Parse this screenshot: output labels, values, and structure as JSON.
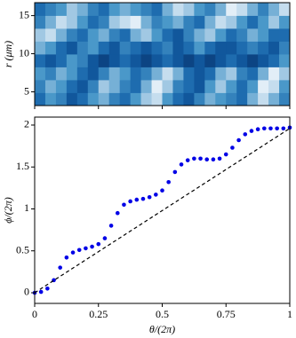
{
  "chart_data": [
    {
      "type": "heatmap",
      "ylabel": "r (μm)",
      "xlim": [
        0,
        1
      ],
      "xticks": [
        0,
        0.25,
        0.5,
        0.75,
        1
      ],
      "ylim": [
        3.2,
        16.7
      ],
      "yticks": [
        5,
        10,
        15
      ],
      "zlim": [
        0,
        1
      ],
      "colors": [
        "#08306b",
        "#1361a8",
        "#4a98c9",
        "#b7d4ea",
        "#ffffff"
      ],
      "z": [
        [
          0.3,
          0.5,
          0.4,
          0.2,
          0.3,
          0.5,
          0.6,
          0.4,
          0.3,
          0.5,
          0.7,
          0.8,
          0.5,
          0.3,
          0.2,
          0.4,
          0.6,
          0.5,
          0.4,
          0.3,
          0.6,
          0.8,
          0.6,
          0.4
        ],
        [
          0.4,
          0.6,
          0.5,
          0.3,
          0.2,
          0.4,
          0.7,
          0.6,
          0.4,
          0.3,
          0.6,
          0.9,
          0.7,
          0.4,
          0.3,
          0.2,
          0.5,
          0.7,
          0.5,
          0.3,
          0.5,
          0.9,
          0.8,
          0.5
        ],
        [
          0.5,
          0.4,
          0.6,
          0.5,
          0.3,
          0.2,
          0.4,
          0.6,
          0.5,
          0.3,
          0.4,
          0.6,
          0.8,
          0.6,
          0.3,
          0.2,
          0.3,
          0.6,
          0.7,
          0.4,
          0.3,
          0.6,
          0.9,
          0.7
        ],
        [
          0.3,
          0.2,
          0.3,
          0.5,
          0.4,
          0.2,
          0.1,
          0.2,
          0.3,
          0.2,
          0.1,
          0.2,
          0.3,
          0.2,
          0.1,
          0.2,
          0.1,
          0.2,
          0.3,
          0.2,
          0.1,
          0.2,
          0.3,
          0.5
        ],
        [
          0.6,
          0.5,
          0.3,
          0.2,
          0.4,
          0.5,
          0.3,
          0.2,
          0.4,
          0.3,
          0.2,
          0.3,
          0.4,
          0.2,
          0.3,
          0.5,
          0.3,
          0.2,
          0.2,
          0.3,
          0.4,
          0.3,
          0.2,
          0.4
        ],
        [
          0.7,
          0.8,
          0.6,
          0.4,
          0.3,
          0.5,
          0.6,
          0.4,
          0.3,
          0.6,
          0.7,
          0.5,
          0.3,
          0.2,
          0.4,
          0.6,
          0.7,
          0.5,
          0.3,
          0.4,
          0.6,
          0.5,
          0.3,
          0.3
        ],
        [
          0.4,
          0.6,
          0.8,
          0.7,
          0.5,
          0.3,
          0.4,
          0.7,
          0.8,
          0.9,
          0.6,
          0.4,
          0.5,
          0.6,
          0.4,
          0.3,
          0.6,
          0.8,
          0.7,
          0.5,
          0.3,
          0.5,
          0.7,
          0.5
        ],
        [
          0.3,
          0.4,
          0.5,
          0.7,
          0.6,
          0.4,
          0.3,
          0.5,
          0.6,
          0.5,
          0.4,
          0.3,
          0.6,
          0.8,
          0.7,
          0.5,
          0.4,
          0.6,
          0.9,
          0.8,
          0.6,
          0.4,
          0.6,
          0.8
        ]
      ]
    },
    {
      "type": "scatter",
      "xlabel": "θ/(2π)",
      "ylabel": "ϕ/(2π)",
      "xlim": [
        0,
        1
      ],
      "xticks": [
        0,
        0.25,
        0.5,
        0.75,
        1
      ],
      "ylim": [
        -0.127,
        2.095
      ],
      "yticks": [
        0,
        0.5,
        1,
        1.5,
        2
      ],
      "series": [
        {
          "type": "points",
          "color": "#0000e6",
          "x": [
            0,
            0.025,
            0.05,
            0.075,
            0.1,
            0.125,
            0.15,
            0.175,
            0.2,
            0.225,
            0.25,
            0.275,
            0.3,
            0.325,
            0.35,
            0.375,
            0.4,
            0.425,
            0.45,
            0.475,
            0.5,
            0.525,
            0.55,
            0.575,
            0.6,
            0.625,
            0.65,
            0.675,
            0.7,
            0.725,
            0.75,
            0.775,
            0.8,
            0.825,
            0.85,
            0.875,
            0.9,
            0.925,
            0.95,
            0.975,
            1
          ],
          "y": [
            0,
            0.01,
            0.05,
            0.15,
            0.3,
            0.42,
            0.48,
            0.51,
            0.53,
            0.55,
            0.58,
            0.65,
            0.8,
            0.95,
            1.05,
            1.09,
            1.11,
            1.12,
            1.14,
            1.17,
            1.22,
            1.32,
            1.44,
            1.53,
            1.58,
            1.6,
            1.6,
            1.59,
            1.59,
            1.6,
            1.65,
            1.73,
            1.82,
            1.89,
            1.93,
            1.95,
            1.96,
            1.96,
            1.96,
            1.96,
            1.97
          ]
        },
        {
          "type": "dashed",
          "color": "#000000",
          "x": [
            0,
            1
          ],
          "y": [
            0,
            1.96
          ]
        }
      ]
    }
  ]
}
